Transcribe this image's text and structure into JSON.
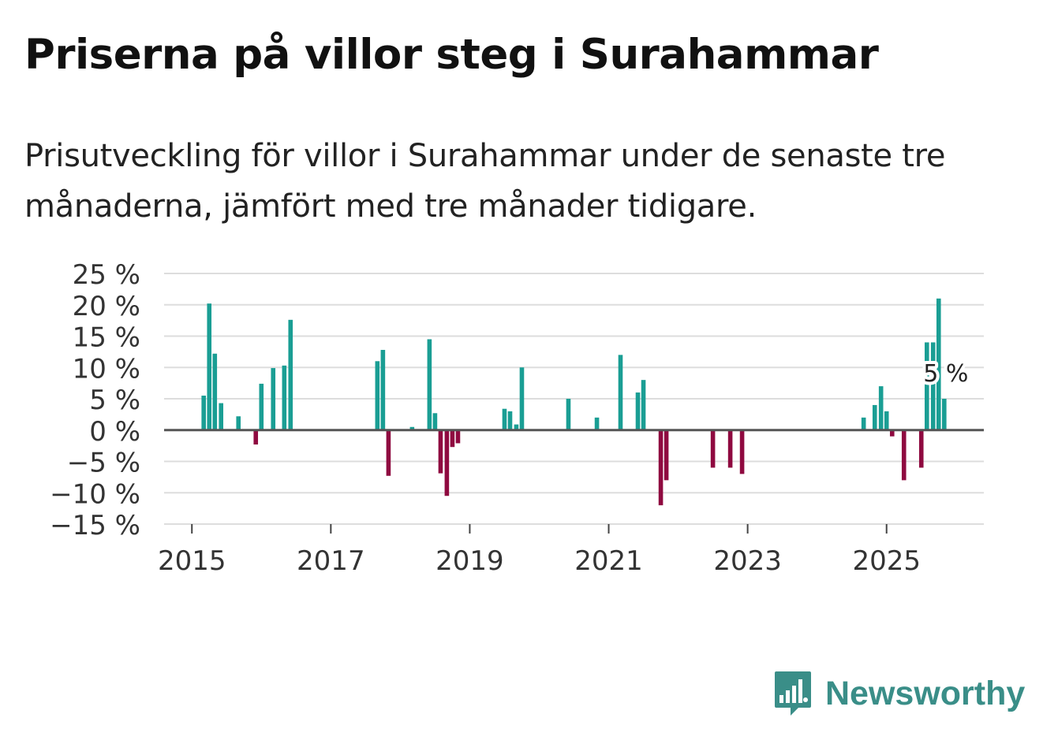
{
  "header": {
    "title": "Priserna på villor steg i Surahammar",
    "subtitle": "Prisutveckling för villor i Surahammar under de senaste tre månaderna, jämfört med tre månader tidigare."
  },
  "chart_data": {
    "type": "bar",
    "xlabel": "",
    "ylabel": "",
    "y_unit": " %",
    "ylim": [
      -15,
      25
    ],
    "y_ticks": [
      25,
      20,
      15,
      10,
      5,
      0,
      -5,
      -10,
      -15
    ],
    "y_tick_labels": [
      "25 %",
      "20 %",
      "15 %",
      "10 %",
      "5 %",
      "0 %",
      "−5 %",
      "−10 %",
      "−15 %"
    ],
    "x_ticks": [
      2015,
      2017,
      2019,
      2021,
      2023,
      2025
    ],
    "x_tick_labels": [
      "2015",
      "2017",
      "2019",
      "2021",
      "2023",
      "2025"
    ],
    "xlim": [
      2014.6,
      2026.4
    ],
    "grid": true,
    "colors": {
      "positive": "#1a9e94",
      "negative": "#8f0a40",
      "grid": "#dddddd",
      "zero_line": "#555555",
      "axis_text": "#333333"
    },
    "annotation": {
      "label": "5 %",
      "x": 2025.83,
      "value": 5
    },
    "series": [
      {
        "name": "Prisutveckling",
        "x": [
          2015.17,
          2015.25,
          2015.33,
          2015.42,
          2015.67,
          2015.92,
          2016.0,
          2016.17,
          2016.33,
          2016.42,
          2017.67,
          2017.75,
          2017.83,
          2018.17,
          2018.42,
          2018.5,
          2018.58,
          2018.67,
          2018.75,
          2018.83,
          2019.5,
          2019.58,
          2019.67,
          2019.75,
          2020.42,
          2020.83,
          2021.17,
          2021.42,
          2021.5,
          2021.75,
          2021.83,
          2022.5,
          2022.75,
          2022.92,
          2024.67,
          2024.83,
          2024.92,
          2025.0,
          2025.08,
          2025.25,
          2025.5,
          2025.58,
          2025.67,
          2025.75,
          2025.83
        ],
        "values": [
          5.5,
          20.2,
          12.2,
          4.3,
          2.2,
          -2.3,
          7.4,
          9.9,
          10.3,
          17.6,
          11.0,
          12.8,
          -7.3,
          0.5,
          14.5,
          2.7,
          -6.9,
          -10.5,
          -2.7,
          -2.1,
          3.4,
          3.0,
          0.9,
          10.0,
          5.0,
          2.0,
          12.0,
          6.0,
          8.0,
          -12.0,
          -8.0,
          -6.0,
          -6.0,
          -7.0,
          2.0,
          4.0,
          7.0,
          3.0,
          -1.0,
          -8.0,
          -6.0,
          14.0,
          14.0,
          21.0,
          5.0
        ]
      }
    ]
  },
  "brand": {
    "name": "Newsworthy",
    "logo_icon": "newsworthy-bar-chart-bubble-icon",
    "color": "#3a8e88"
  }
}
